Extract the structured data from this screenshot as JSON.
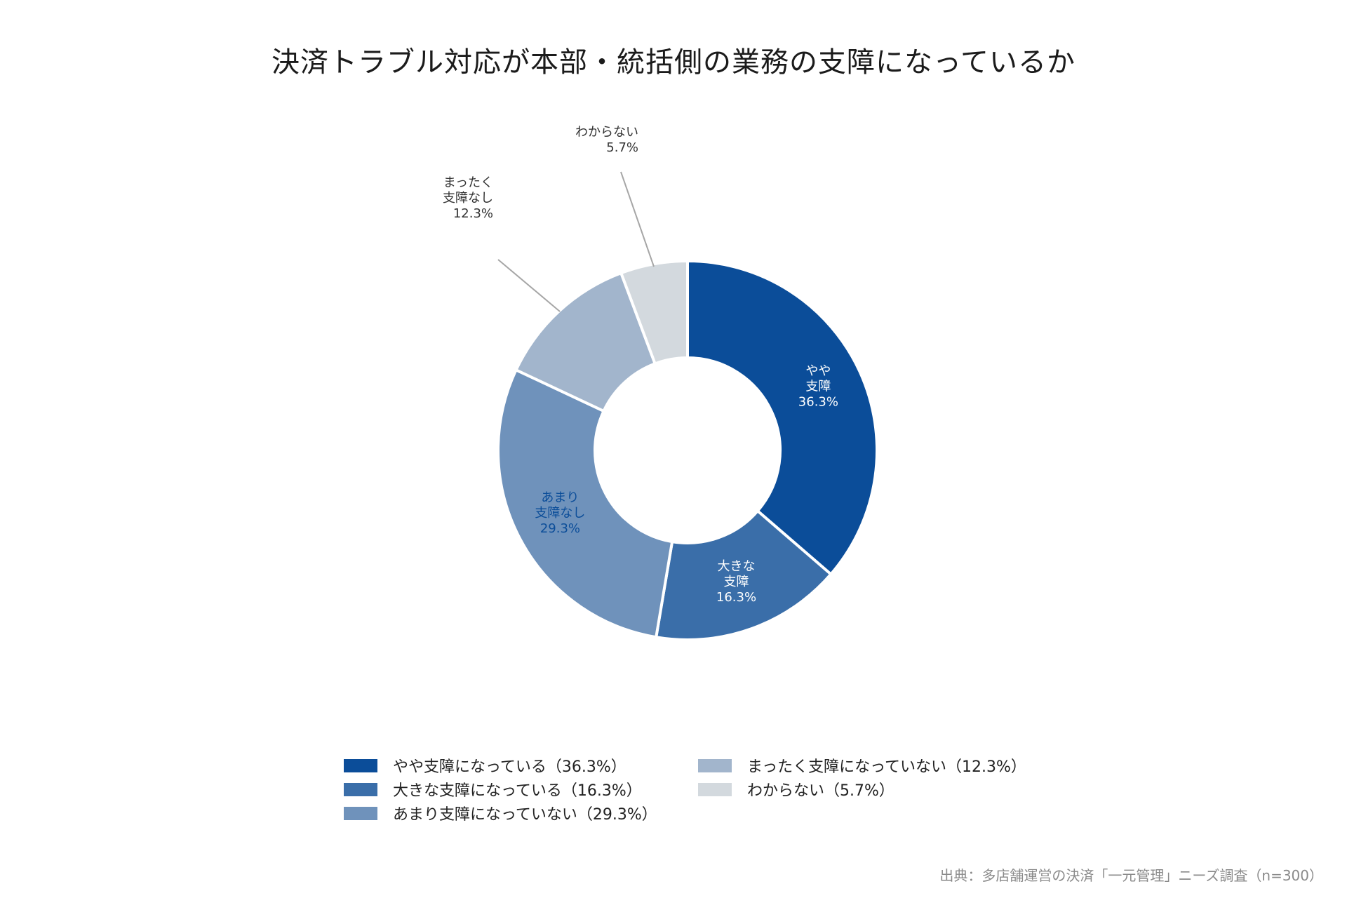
{
  "chart_data": {
    "type": "pie",
    "title": "決済トラブル対応が本部・統括側の業務の支障になっているか",
    "source": "出典：多店舗運営の決済「一元管理」ニーズ調査（n=300）",
    "slices": [
      {
        "legend": "やや支障になっている（36.3%）",
        "label": [
          "やや",
          "支障",
          "36.3%"
        ],
        "value": 36.3,
        "color": "#0b4d99"
      },
      {
        "legend": "大きな支障になっている（16.3%）",
        "label": [
          "大きな",
          "支障",
          "16.3%"
        ],
        "value": 16.3,
        "color": "#3a6ea9"
      },
      {
        "legend": "あまり支障になっていない（29.3%）",
        "label": [
          "あまり",
          "支障なし",
          "29.3%"
        ],
        "value": 29.3,
        "color": "#6f92bb"
      },
      {
        "legend": "まったく支障になっていない（12.3%）",
        "label": [
          "まったく",
          "支障なし",
          "12.3%"
        ],
        "value": 12.3,
        "color": "#a2b5cc"
      },
      {
        "legend": "わからない（5.7%）",
        "label": [
          "わからない",
          "5.7%"
        ],
        "value": 5.7,
        "color": "#d3d9de"
      }
    ]
  }
}
